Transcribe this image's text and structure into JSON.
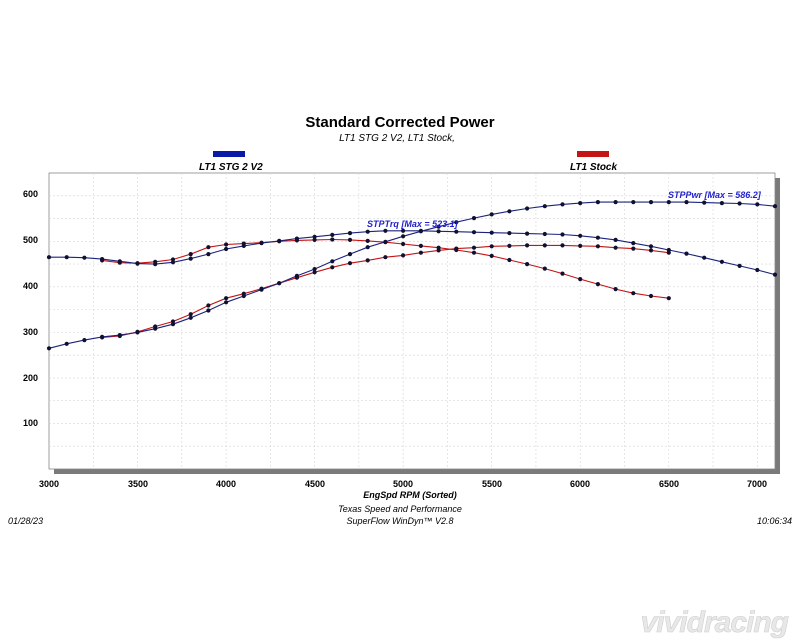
{
  "chart_data": {
    "type": "line",
    "title": "Standard Corrected Power",
    "subtitle": "LT1 STG 2 V2, LT1 Stock,",
    "xlabel": "EngSpd  RPM   (Sorted)",
    "ylabel": "",
    "xlim": [
      3000,
      7100
    ],
    "ylim": [
      0,
      650
    ],
    "x_ticks": [
      "3000",
      "3500",
      "4000",
      "4500",
      "5000",
      "5500",
      "6000",
      "6500",
      "7000"
    ],
    "y_ticks": [
      "100",
      "200",
      "300",
      "400",
      "500",
      "600"
    ],
    "grid": true,
    "legend": [
      {
        "name": "LT1 STG 2 V2",
        "color": "#0a1aa8"
      },
      {
        "name": "LT1 Stock",
        "color": "#c41414"
      }
    ],
    "annotations": [
      {
        "text": "STPTrq [Max = 523.1]",
        "x": 4800,
        "y": 523
      },
      {
        "text": "STPPwr [Max = 586.2]",
        "x": 6500,
        "y": 586
      }
    ],
    "series": [
      {
        "run": "LT1 STG 2 V2",
        "quantity": "STPTrq",
        "color": "#1a237e",
        "x": [
          3000,
          3100,
          3200,
          3300,
          3400,
          3500,
          3600,
          3700,
          3800,
          3900,
          4000,
          4100,
          4200,
          4300,
          4400,
          4500,
          4600,
          4700,
          4800,
          4900,
          5000,
          5100,
          5200,
          5300,
          5400,
          5500,
          5600,
          5700,
          5800,
          5900,
          6000,
          6100,
          6200,
          6300,
          6400,
          6500,
          6600,
          6700,
          6800,
          6900,
          7000,
          7100
        ],
        "y": [
          465,
          465,
          464,
          461,
          456,
          451,
          450,
          454,
          462,
          472,
          483,
          490,
          496,
          501,
          506,
          510,
          514,
          518,
          521,
          523,
          523,
          523,
          522,
          521,
          520,
          519,
          518,
          517,
          516,
          515,
          512,
          508,
          503,
          496,
          489,
          481,
          473,
          464,
          455,
          446,
          437,
          427
        ]
      },
      {
        "run": "LT1 STG 2 V2",
        "quantity": "STPPwr",
        "color": "#1a237e",
        "x": [
          3000,
          3100,
          3200,
          3300,
          3400,
          3500,
          3600,
          3700,
          3800,
          3900,
          4000,
          4100,
          4200,
          4300,
          4400,
          4500,
          4600,
          4700,
          4800,
          4900,
          5000,
          5100,
          5200,
          5300,
          5400,
          5500,
          5600,
          5700,
          5800,
          5900,
          6000,
          6100,
          6200,
          6300,
          6400,
          6500,
          6600,
          6700,
          6800,
          6900,
          7000,
          7100
        ],
        "y": [
          265,
          275,
          283,
          290,
          294,
          300,
          308,
          318,
          332,
          348,
          366,
          380,
          394,
          408,
          424,
          439,
          456,
          472,
          487,
          499,
          511,
          522,
          532,
          542,
          551,
          559,
          566,
          572,
          577,
          581,
          584,
          586,
          586,
          586,
          586,
          586,
          586,
          585,
          584,
          583,
          581,
          577
        ]
      },
      {
        "run": "LT1 Stock",
        "quantity": "STPTrq",
        "color": "#c41414",
        "x": [
          3300,
          3400,
          3500,
          3600,
          3700,
          3800,
          3900,
          4000,
          4100,
          4200,
          4300,
          4400,
          4500,
          4600,
          4700,
          4800,
          4900,
          5000,
          5100,
          5200,
          5300,
          5400,
          5500,
          5600,
          5700,
          5800,
          5900,
          6000,
          6100,
          6200,
          6300,
          6400,
          6500
        ],
        "y": [
          458,
          453,
          452,
          455,
          460,
          472,
          487,
          493,
          495,
          497,
          500,
          502,
          503,
          504,
          503,
          501,
          498,
          494,
          490,
          486,
          481,
          475,
          468,
          459,
          450,
          440,
          429,
          417,
          406,
          395,
          386,
          380,
          375
        ]
      },
      {
        "run": "LT1 Stock",
        "quantity": "STPPwr",
        "color": "#c41414",
        "x": [
          3300,
          3400,
          3500,
          3600,
          3700,
          3800,
          3900,
          4000,
          4100,
          4200,
          4300,
          4400,
          4500,
          4600,
          4700,
          4800,
          4900,
          5000,
          5100,
          5200,
          5300,
          5400,
          5500,
          5600,
          5700,
          5800,
          5900,
          6000,
          6100,
          6200,
          6300,
          6400,
          6500
        ],
        "y": [
          289,
          292,
          301,
          313,
          324,
          340,
          359,
          375,
          385,
          396,
          408,
          420,
          432,
          443,
          452,
          458,
          465,
          469,
          475,
          480,
          484,
          486,
          489,
          490,
          491,
          491,
          491,
          490,
          489,
          486,
          484,
          480,
          475
        ]
      }
    ]
  },
  "footer": {
    "date": "01/28/23",
    "company": "Texas Speed and Performance",
    "software": "SuperFlow WinDyn™  V2.8",
    "time": "10:06:34"
  },
  "watermark": {
    "text": "vividracing"
  }
}
